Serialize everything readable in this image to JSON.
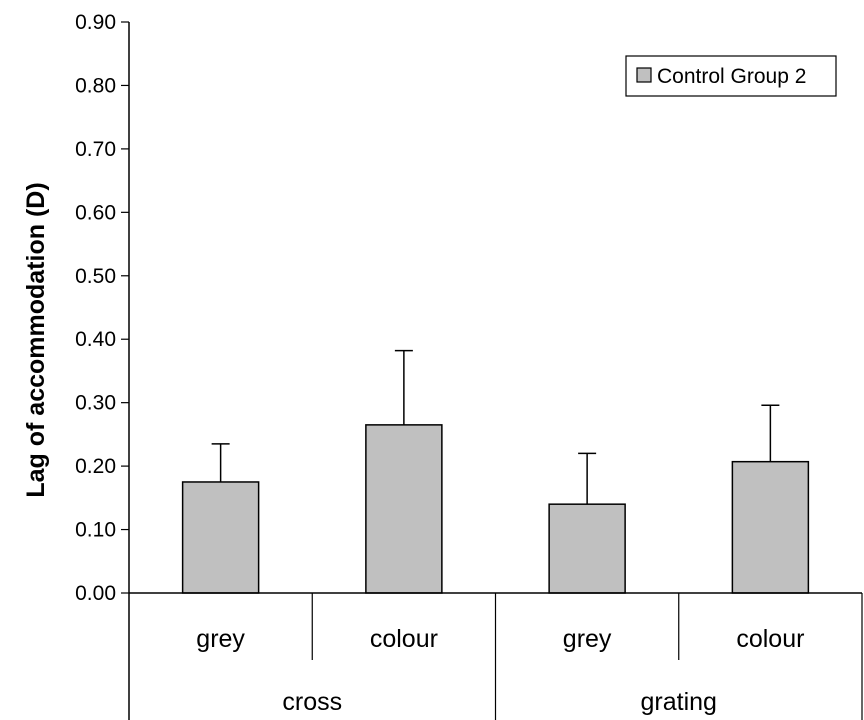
{
  "chart_data": {
    "type": "bar",
    "ylabel": "Lag of accommodation (D)",
    "xlabel": "",
    "ylim": [
      0,
      0.9
    ],
    "yticks": [
      "0.00",
      "0.10",
      "0.20",
      "0.30",
      "0.40",
      "0.50",
      "0.60",
      "0.70",
      "0.80",
      "0.90"
    ],
    "groups": [
      {
        "label": "cross",
        "categories": [
          "grey",
          "colour"
        ]
      },
      {
        "label": "grating",
        "categories": [
          "grey",
          "colour"
        ]
      }
    ],
    "categories": [
      "grey",
      "colour",
      "grey",
      "colour"
    ],
    "series": [
      {
        "name": "Control Group 2",
        "values": [
          0.175,
          0.265,
          0.14,
          0.207
        ],
        "error_upper": [
          0.06,
          0.117,
          0.08,
          0.089
        ]
      }
    ],
    "bar_color": "#c0c0c0",
    "legend_position": "top-right",
    "grid": false
  }
}
